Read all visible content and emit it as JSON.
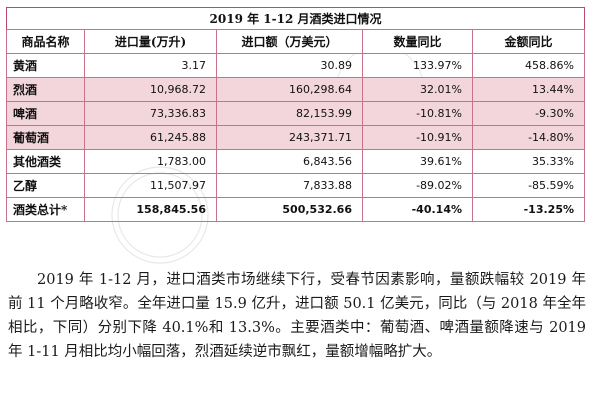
{
  "table": {
    "title": "2019 年 1-12 月酒类进口情况",
    "headers": [
      "商品名称",
      "进口量(万升)",
      "进口额（万美元）",
      "数量同比",
      "金额同比"
    ],
    "rows": [
      {
        "name": "黄酒",
        "volume": "3.17",
        "amount": "30.89",
        "qty_yoy": "133.97%",
        "amt_yoy": "458.86%"
      },
      {
        "name": "烈酒",
        "volume": "10,968.72",
        "amount": "160,298.64",
        "qty_yoy": "32.01%",
        "amt_yoy": "13.44%"
      },
      {
        "name": "啤酒",
        "volume": "73,336.83",
        "amount": "82,153.99",
        "qty_yoy": "-10.81%",
        "amt_yoy": "-9.30%"
      },
      {
        "name": "葡萄酒",
        "volume": "61,245.88",
        "amount": "243,371.71",
        "qty_yoy": "-10.91%",
        "amt_yoy": "-14.80%"
      },
      {
        "name": "其他酒类",
        "volume": "1,783.00",
        "amount": "6,843.56",
        "qty_yoy": "39.61%",
        "amt_yoy": "35.33%"
      },
      {
        "name": "乙醇",
        "volume": "11,507.97",
        "amount": "7,833.88",
        "qty_yoy": "-89.02%",
        "amt_yoy": "-85.59%"
      },
      {
        "name": "酒类总计*",
        "volume": "158,845.56",
        "amount": "500,532.66",
        "qty_yoy": "-40.14%",
        "amt_yoy": "-13.25%"
      }
    ]
  },
  "paragraph": "2019 年 1-12 月，进口酒类市场继续下行，受春节因素影响，量额跌幅较 2019 年前 11 个月略收窄。全年进口量 15.9 亿升，进口额 50.1 亿美元，同比（与 2018 年全年相比，下同）分别下降 40.1%和 13.3%。主要酒类中：葡萄酒、啤酒量额降速与 2019 年 1-11 月相比均小幅回落，烈酒延续逆市飘红，量额增幅略扩大。",
  "colors": {
    "border": "#c9718a",
    "highlight_row": "#f3d6dc"
  }
}
